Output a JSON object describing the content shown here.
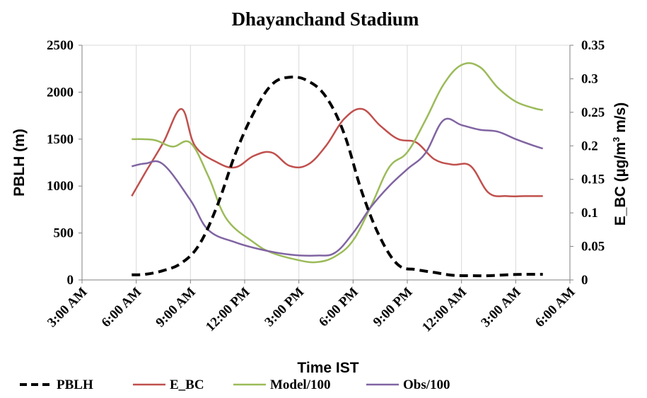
{
  "chart_data": {
    "type": "line",
    "title": "Dhayanchand Stadium",
    "xlabel": "Time  IST",
    "ylabel_left": "PBLH (m)",
    "ylabel_right_main": "E_BC (µg/m",
    "ylabel_right_sup": "3",
    "ylabel_right_tail": " m/s)",
    "x_ticks": [
      "3:00 AM",
      "6:00 AM",
      "9:00 AM",
      "12:00 PM",
      "3:00 PM",
      "6:00 PM",
      "9:00 PM",
      "12:00 AM",
      "3:00 AM",
      "6:00 AM"
    ],
    "x_tick_hours": [
      3,
      6,
      9,
      12,
      15,
      18,
      21,
      24,
      27,
      30
    ],
    "xlim": [
      3,
      30
    ],
    "ylim_left": [
      0,
      2500
    ],
    "ylim_right": [
      0,
      0.35
    ],
    "y_ticks_left": [
      0,
      500,
      1000,
      1500,
      2000,
      2500
    ],
    "y_ticks_right": [
      0,
      0.05,
      0.1,
      0.15,
      0.2,
      0.25,
      0.3,
      0.35
    ],
    "y_tick_labels_left": [
      "0",
      "500",
      "1000",
      "1500",
      "2000",
      "2500"
    ],
    "y_tick_labels_right": [
      "0",
      "0.05",
      "0.1",
      "0.15",
      "0.2",
      "0.25",
      "0.3",
      "0.35"
    ],
    "grid": "vertical",
    "legend_position": "bottom",
    "series": [
      {
        "name": "PBLH",
        "axis": "left",
        "color": "#000000",
        "dash": "dashed",
        "points": [
          [
            5.75,
            55
          ],
          [
            6.5,
            60
          ],
          [
            7.5,
            100
          ],
          [
            8.5,
            180
          ],
          [
            9.5,
            380
          ],
          [
            10.5,
            800
          ],
          [
            11.5,
            1350
          ],
          [
            12.5,
            1780
          ],
          [
            13.5,
            2080
          ],
          [
            14.5,
            2160
          ],
          [
            15.5,
            2120
          ],
          [
            16.5,
            1950
          ],
          [
            17.5,
            1560
          ],
          [
            18.5,
            930
          ],
          [
            19.5,
            450
          ],
          [
            20.5,
            160
          ],
          [
            21.5,
            110
          ],
          [
            22.5,
            80
          ],
          [
            23.5,
            50
          ],
          [
            24.5,
            45
          ],
          [
            25.5,
            45
          ],
          [
            26.5,
            55
          ],
          [
            27.5,
            60
          ],
          [
            28.5,
            60
          ]
        ]
      },
      {
        "name": "E_BC",
        "axis": "right",
        "color": "#c0504d",
        "dash": "solid",
        "points": [
          [
            5.75,
            0.125
          ],
          [
            6.5,
            0.16
          ],
          [
            7.5,
            0.205
          ],
          [
            8.5,
            0.255
          ],
          [
            9.25,
            0.2
          ],
          [
            10.5,
            0.175
          ],
          [
            11.5,
            0.168
          ],
          [
            12.5,
            0.185
          ],
          [
            13.5,
            0.19
          ],
          [
            14.5,
            0.17
          ],
          [
            15.5,
            0.172
          ],
          [
            16.5,
            0.2
          ],
          [
            17.5,
            0.24
          ],
          [
            18.5,
            0.255
          ],
          [
            19.5,
            0.23
          ],
          [
            20.5,
            0.21
          ],
          [
            21.5,
            0.205
          ],
          [
            22.5,
            0.18
          ],
          [
            23.5,
            0.172
          ],
          [
            24.5,
            0.17
          ],
          [
            25.5,
            0.13
          ],
          [
            26.5,
            0.125
          ],
          [
            27.5,
            0.125
          ],
          [
            28.5,
            0.125
          ]
        ]
      },
      {
        "name": "Model/100",
        "axis": "left",
        "color": "#9bbb59",
        "dash": "solid",
        "points": [
          [
            5.75,
            1500
          ],
          [
            7,
            1490
          ],
          [
            8,
            1420
          ],
          [
            9,
            1460
          ],
          [
            10,
            1100
          ],
          [
            11,
            650
          ],
          [
            12.5,
            400
          ],
          [
            13.5,
            290
          ],
          [
            15,
            210
          ],
          [
            16,
            190
          ],
          [
            17,
            250
          ],
          [
            18,
            420
          ],
          [
            19,
            790
          ],
          [
            20,
            1200
          ],
          [
            21,
            1360
          ],
          [
            22,
            1700
          ],
          [
            23,
            2080
          ],
          [
            24,
            2290
          ],
          [
            25,
            2270
          ],
          [
            26,
            2050
          ],
          [
            27,
            1900
          ],
          [
            28,
            1830
          ],
          [
            28.5,
            1810
          ]
        ]
      },
      {
        "name": "Obs/100",
        "axis": "left",
        "color": "#8064a2",
        "dash": "solid",
        "points": [
          [
            5.75,
            1210
          ],
          [
            6.5,
            1240
          ],
          [
            7.5,
            1230
          ],
          [
            9,
            850
          ],
          [
            10,
            530
          ],
          [
            11.5,
            400
          ],
          [
            13,
            320
          ],
          [
            14.5,
            270
          ],
          [
            16,
            260
          ],
          [
            17,
            290
          ],
          [
            18,
            500
          ],
          [
            19,
            780
          ],
          [
            20,
            1000
          ],
          [
            21,
            1180
          ],
          [
            22,
            1350
          ],
          [
            23,
            1700
          ],
          [
            24,
            1650
          ],
          [
            25,
            1600
          ],
          [
            26,
            1580
          ],
          [
            27,
            1500
          ],
          [
            28,
            1430
          ],
          [
            28.5,
            1400
          ]
        ]
      }
    ]
  }
}
